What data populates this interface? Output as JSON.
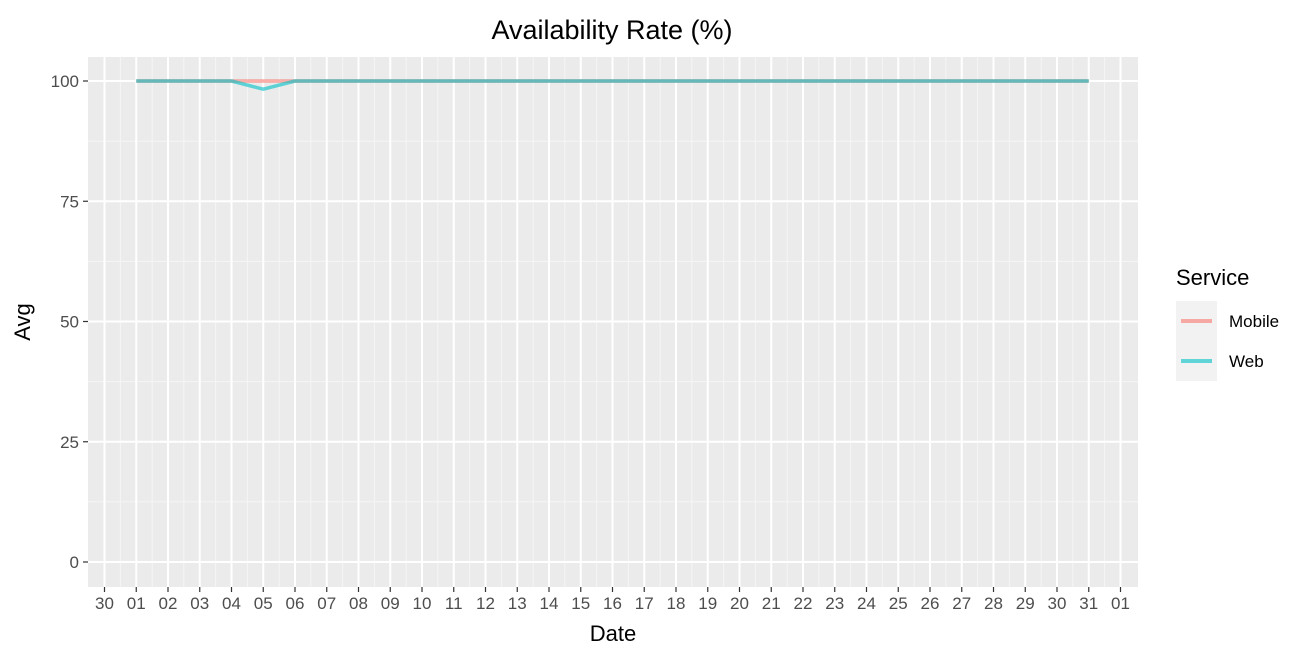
{
  "chart_data": {
    "type": "line",
    "title": "Availability Rate (%)",
    "xlabel": "Date",
    "ylabel": "Avg",
    "ylim": [
      0,
      100
    ],
    "y_ticks": [
      0,
      25,
      50,
      75,
      100
    ],
    "x_tick_labels": [
      "30",
      "01",
      "02",
      "03",
      "04",
      "05",
      "06",
      "07",
      "08",
      "09",
      "10",
      "11",
      "12",
      "13",
      "14",
      "15",
      "16",
      "17",
      "18",
      "19",
      "20",
      "21",
      "22",
      "23",
      "24",
      "25",
      "26",
      "27",
      "28",
      "29",
      "30",
      "31",
      "01"
    ],
    "x": [
      "01",
      "02",
      "03",
      "04",
      "05",
      "06",
      "07",
      "08",
      "09",
      "10",
      "11",
      "12",
      "13",
      "14",
      "15",
      "16",
      "17",
      "18",
      "19",
      "20",
      "21",
      "22",
      "23",
      "24",
      "25",
      "26",
      "27",
      "28",
      "29",
      "30",
      "31"
    ],
    "series": [
      {
        "name": "Mobile",
        "color": "#F8766D",
        "values": [
          100,
          100,
          100,
          100,
          100,
          100,
          100,
          100,
          100,
          100,
          100,
          100,
          100,
          100,
          100,
          100,
          100,
          100,
          100,
          100,
          100,
          100,
          100,
          100,
          100,
          100,
          100,
          100,
          100,
          100,
          100
        ]
      },
      {
        "name": "Web",
        "color": "#00BFC4",
        "values": [
          100,
          100,
          100,
          100,
          98.3,
          100,
          100,
          100,
          100,
          100,
          100,
          100,
          100,
          100,
          100,
          100,
          100,
          100,
          100,
          100,
          100,
          100,
          100,
          100,
          100,
          100,
          100,
          100,
          100,
          100,
          100
        ]
      }
    ],
    "grid": true,
    "legend": {
      "title": "Service",
      "position": "right"
    }
  }
}
